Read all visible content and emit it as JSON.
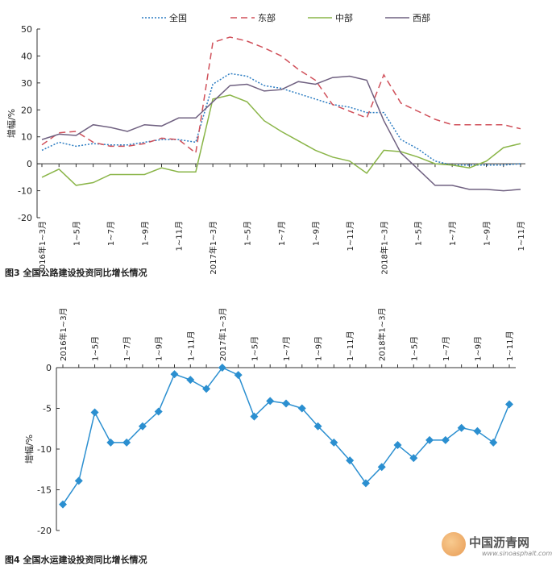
{
  "charts": [
    {
      "type": "line",
      "caption": "图3  全国公路建设投资同比增长情况",
      "ylabel": "增幅/%",
      "ylim": [
        -20,
        50
      ],
      "yticks": [
        "50",
        "40",
        "30",
        "20",
        "10",
        "0",
        "-10",
        "-20"
      ],
      "categories": [
        "2016年1~3月",
        "",
        "1~5月",
        "",
        "1~7月",
        "",
        "1~9月",
        "",
        "1~11月",
        "",
        "2017年1~3月",
        "",
        "1~5月",
        "",
        "1~7月",
        "",
        "1~9月",
        "",
        "1~11月",
        "",
        "2018年1~3月",
        "",
        "1~5月",
        "",
        "1~7月",
        "",
        "1~9月",
        "",
        "1~11月"
      ],
      "tick_labels": [
        "2016年1~3月",
        "1~5月",
        "1~7月",
        "1~9月",
        "1~11月",
        "2017年1~3月",
        "1~5月",
        "1~7月",
        "1~9月",
        "1~11月",
        "2018年1~3月",
        "1~5月",
        "1~7月",
        "1~9月",
        "1~11月"
      ],
      "series": [
        {
          "name": "全国",
          "color": "#2b7cc2",
          "style": "dotted",
          "values": [
            5,
            8,
            6.5,
            7.5,
            7,
            7,
            8,
            9,
            9,
            8,
            29.5,
            33.5,
            32.5,
            29,
            28,
            26,
            24,
            22,
            21,
            19,
            19,
            9,
            5.5,
            1,
            -0.5,
            -0.5,
            -0.5,
            -0.5,
            0
          ]
        },
        {
          "name": "东部",
          "color": "#d0505a",
          "style": "dashed",
          "values": [
            7,
            11.5,
            12,
            8,
            6.5,
            6.5,
            7.5,
            9.5,
            9,
            4,
            45,
            47,
            45.5,
            43,
            40,
            35,
            31,
            22,
            19.5,
            17,
            33,
            22.5,
            19.5,
            16.5,
            14.5,
            14.5,
            14.5,
            14.5,
            13
          ]
        },
        {
          "name": "中部",
          "color": "#8ab548",
          "style": "solid",
          "values": [
            -5,
            -2,
            -8,
            -7,
            -4,
            -4,
            -4,
            -1.5,
            -3,
            -3,
            24,
            25.5,
            23,
            16,
            12,
            8.5,
            5,
            2.5,
            1,
            -3.5,
            5,
            4.5,
            2.5,
            0,
            -0.5,
            -1.5,
            1,
            6,
            7.5
          ]
        },
        {
          "name": "西部",
          "color": "#6f6080",
          "style": "solid",
          "values": [
            9,
            11,
            10.5,
            14.5,
            13.5,
            12,
            14.5,
            14,
            17,
            17,
            23,
            29,
            29.5,
            27,
            27.5,
            30.5,
            29.5,
            32,
            32.5,
            31,
            16,
            4,
            -2,
            -8,
            -8,
            -9.5,
            -9.5,
            -10,
            -9.5
          ]
        }
      ]
    },
    {
      "type": "line",
      "caption": "图4  全国水运建设投资同比增长情况",
      "ylabel": "增幅/%",
      "ylim": [
        -20,
        0
      ],
      "yticks": [
        "0",
        "-5",
        "-10",
        "-15",
        "-20"
      ],
      "tick_labels": [
        "2016年1~3月",
        "1~5月",
        "1~7月",
        "1~9月",
        "1~11月",
        "2017年1~3月",
        "1~5月",
        "1~7月",
        "1~9月",
        "1~11月",
        "2018年1~3月",
        "1~5月",
        "1~7月",
        "1~9月",
        "1~11月"
      ],
      "series": [
        {
          "name": "水运",
          "color": "#2b8fd0",
          "values": [
            -16.8,
            -13.9,
            -5.5,
            -9.2,
            -9.2,
            -7.2,
            -5.4,
            -0.8,
            -1.5,
            -2.6,
            0,
            -0.9,
            -6,
            -4.1,
            -4.4,
            -5,
            -7.2,
            -9.2,
            -11.4,
            -14.2,
            -12.2,
            -9.5,
            -11.1,
            -8.9,
            -8.9,
            -7.4,
            -7.8,
            -9.2,
            -4.5
          ]
        }
      ]
    }
  ],
  "watermark": {
    "name": "中国沥青网",
    "url": "www.sinoasphalt.com"
  }
}
